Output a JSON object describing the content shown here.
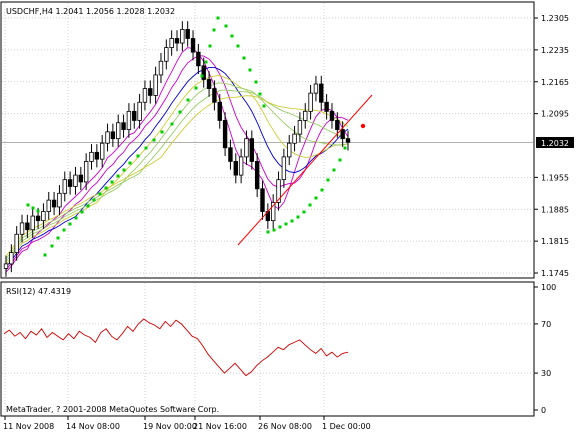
{
  "header": {
    "price_title": "USDCHF,H4  1.2041 1.2056 1.2028 1.2032",
    "rsi_title": "RSI(12) 47.4319",
    "copyright": "MetaTrader, ? 2001-2008 MetaQuotes Software Corp."
  },
  "price_axis": {
    "ticks": [
      "1.2305",
      "1.2235",
      "1.2165",
      "1.2095",
      "1.1955",
      "1.1885",
      "1.1815",
      "1.1745"
    ],
    "current": "1.2032",
    "current_value": 1.2032,
    "range": [
      1.173,
      1.232
    ]
  },
  "rsi_axis": {
    "ticks": [
      "100",
      "70",
      "30",
      "0"
    ],
    "range": [
      0,
      100
    ]
  },
  "time_axis": {
    "labels": [
      "11 Nov 2008",
      "14 Nov 08:00",
      "19 Nov 00:00",
      "21 Nov 16:00",
      "26 Nov 08:00",
      "1 Dec 00:00"
    ]
  },
  "colors": {
    "background": "#ffffff",
    "grid": "#c0c0c0",
    "candle": "#000000",
    "ma_magenta": "#cc00cc",
    "ma_blue": "#0000cc",
    "ma_yellow": "#cccc33",
    "ma_lightgreen": "#99cc66",
    "sar": "#00cc00",
    "trendline": "#ff0000",
    "rsi": "#cc0000",
    "current_bg": "#000000",
    "current_fg": "#ffffff"
  },
  "chart_data": {
    "type": "candlestick",
    "symbol": "USDCHF",
    "timeframe": "H4",
    "close_series": [
      1.1765,
      1.179,
      1.183,
      1.1855,
      1.184,
      1.187,
      1.186,
      1.188,
      1.1905,
      1.189,
      1.192,
      1.195,
      1.1935,
      1.196,
      1.1945,
      1.199,
      1.201,
      1.1995,
      1.203,
      1.2055,
      1.204,
      1.2075,
      1.206,
      1.21,
      1.208,
      1.212,
      1.215,
      1.2135,
      1.218,
      1.221,
      1.224,
      1.226,
      1.225,
      1.228,
      1.226,
      1.223,
      1.22,
      1.217,
      1.215,
      1.212,
      1.208,
      1.202,
      1.199,
      1.196,
      1.2,
      1.204,
      1.199,
      1.193,
      1.188,
      1.186,
      1.19,
      1.195,
      1.2,
      1.203,
      1.205,
      1.208,
      1.21,
      1.214,
      1.216,
      1.212,
      1.21,
      1.208,
      1.206,
      1.204,
      1.2032
    ],
    "rsi_values": [
      62,
      65,
      60,
      63,
      58,
      64,
      61,
      66,
      59,
      63,
      60,
      57,
      62,
      58,
      64,
      61,
      59,
      55,
      63,
      66,
      60,
      57,
      62,
      68,
      64,
      70,
      74,
      71,
      69,
      66,
      72,
      68,
      73,
      70,
      65,
      60,
      58,
      52,
      45,
      40,
      35,
      30,
      34,
      38,
      33,
      28,
      31,
      36,
      40,
      43,
      47,
      51,
      49,
      53,
      55,
      57,
      53,
      49,
      46,
      50,
      44,
      47,
      43,
      46,
      47
    ],
    "sar_points": [
      [
        28,
        205
      ],
      [
        33,
        208
      ],
      [
        38,
        211
      ],
      [
        45,
        255
      ],
      [
        52,
        246
      ],
      [
        58,
        238
      ],
      [
        64,
        230
      ],
      [
        70,
        224
      ],
      [
        76,
        218
      ],
      [
        82,
        212
      ],
      [
        88,
        206
      ],
      [
        94,
        200
      ],
      [
        100,
        194
      ],
      [
        106,
        188
      ],
      [
        112,
        182
      ],
      [
        118,
        176
      ],
      [
        124,
        170
      ],
      [
        130,
        163
      ],
      [
        138,
        156
      ],
      [
        146,
        148
      ],
      [
        154,
        140
      ],
      [
        162,
        132
      ],
      [
        172,
        124
      ],
      [
        180,
        112
      ],
      [
        188,
        100
      ],
      [
        196,
        88
      ],
      [
        202,
        76
      ],
      [
        206,
        62
      ],
      [
        210,
        46
      ],
      [
        214,
        30
      ],
      [
        218,
        18
      ],
      [
        226,
        26
      ],
      [
        232,
        36
      ],
      [
        238,
        46
      ],
      [
        244,
        58
      ],
      [
        250,
        70
      ],
      [
        256,
        82
      ],
      [
        260,
        94
      ],
      [
        264,
        106
      ],
      [
        268,
        232
      ],
      [
        274,
        230
      ],
      [
        280,
        227
      ],
      [
        286,
        224
      ],
      [
        292,
        221
      ],
      [
        298,
        217
      ],
      [
        304,
        212
      ],
      [
        310,
        205
      ],
      [
        316,
        198
      ],
      [
        322,
        190
      ],
      [
        328,
        180
      ],
      [
        334,
        170
      ],
      [
        340,
        160
      ],
      [
        345,
        148
      ]
    ],
    "trendlines": [
      [
        [
          238,
          245
        ],
        [
          372,
          95
        ]
      ]
    ],
    "marker": [
      363,
      126
    ]
  }
}
